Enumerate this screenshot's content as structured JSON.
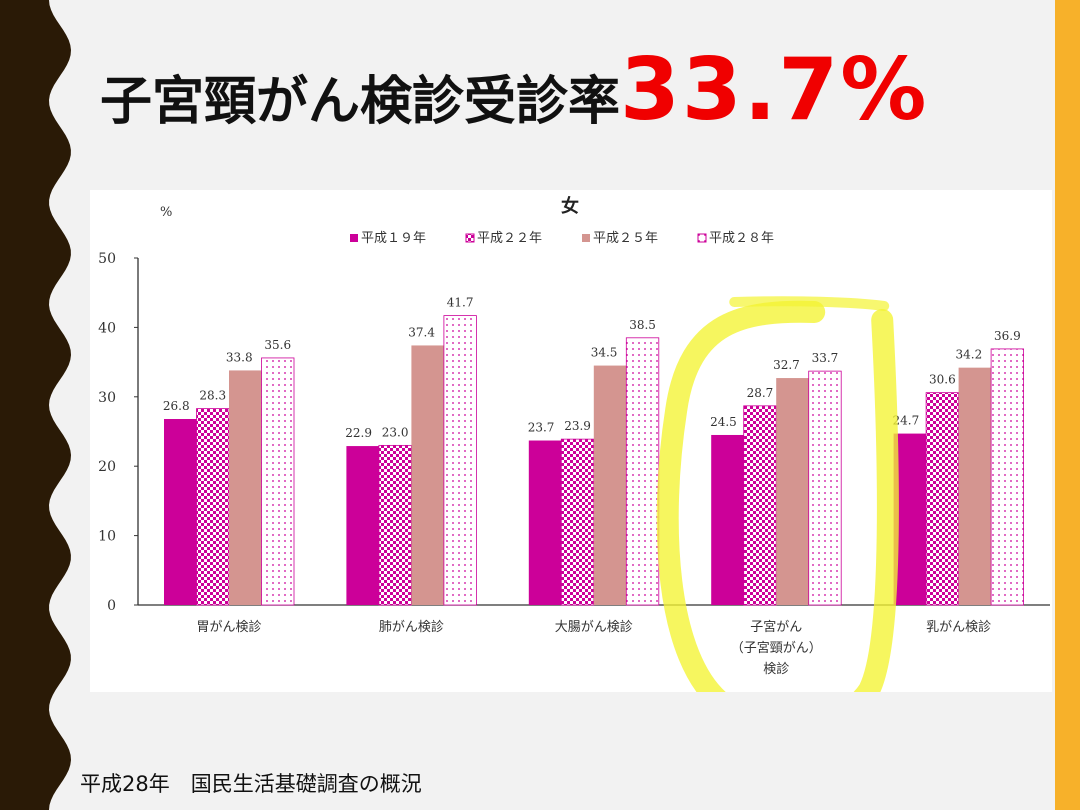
{
  "slide": {
    "title_text": "子宮頸がん検診受診率",
    "title_value": "33.7%",
    "source": "平成28年　国民生活基礎調査の概況",
    "colors": {
      "left_band": "#2a1a06",
      "right_band": "#f7b12a",
      "title_value": "#f00000",
      "highlight": "#f4f432"
    }
  },
  "chart_data": {
    "type": "bar",
    "title": "女",
    "ylabel": "%",
    "ylim": [
      0,
      50
    ],
    "yticks": [
      0,
      10,
      20,
      30,
      40,
      50
    ],
    "categories": [
      [
        "胃がん検診"
      ],
      [
        "肺がん検診"
      ],
      [
        "大腸がん検診"
      ],
      [
        "子宮がん",
        "（子宮頸がん）",
        "検診"
      ],
      [
        "乳がん検診"
      ]
    ],
    "series": [
      {
        "name": "平成１９年",
        "values": [
          26.8,
          22.9,
          23.7,
          24.5,
          24.7
        ],
        "labels": [
          "26.8",
          "22.9",
          "23.7",
          "24.5",
          "24.7"
        ],
        "color": "#cc0099",
        "pattern": "solid"
      },
      {
        "name": "平成２２年",
        "values": [
          28.3,
          23.0,
          23.9,
          28.7,
          30.6
        ],
        "labels": [
          "28.3",
          "23.0",
          "23.9",
          "28.7",
          "30.6"
        ],
        "color": "#cc0099",
        "pattern": "checker"
      },
      {
        "name": "平成２５年",
        "values": [
          33.8,
          37.4,
          34.5,
          32.7,
          34.2
        ],
        "labels": [
          "33.8",
          "37.4",
          "34.5",
          "32.7",
          "34.2"
        ],
        "color": "#d49590",
        "pattern": "solid"
      },
      {
        "name": "平成２８年",
        "values": [
          35.6,
          41.7,
          38.5,
          33.7,
          36.9
        ],
        "labels": [
          "35.6",
          "41.7",
          "38.5",
          "33.7",
          "36.9"
        ],
        "color": "#cc0099",
        "pattern": "dots"
      }
    ],
    "legend_position": "top",
    "grid": false,
    "highlighted_category": 3
  }
}
